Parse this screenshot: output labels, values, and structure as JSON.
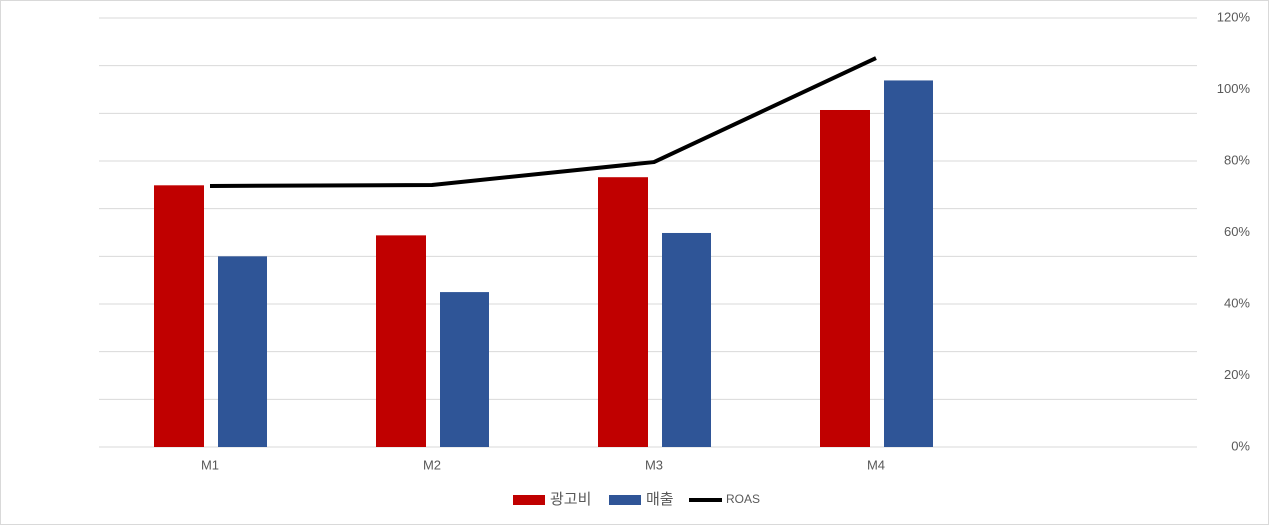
{
  "chart_data": {
    "type": "bar",
    "categories": [
      "M1",
      "M2",
      "M3",
      "M4"
    ],
    "series": [
      {
        "name": "광고비",
        "color": "#c00000",
        "values": [
          5.49,
          4.44,
          5.66,
          7.07
        ]
      },
      {
        "name": "매출",
        "color": "#2f5597",
        "values": [
          4.0,
          3.25,
          4.49,
          7.69
        ]
      },
      {
        "name": "ROAS",
        "color": "#000000",
        "type": "line",
        "axis": "y2",
        "values": [
          73.0,
          73.3,
          79.7,
          108.8
        ]
      }
    ],
    "ylim": [
      0,
      9
    ],
    "yticks": [
      0,
      1,
      2,
      3,
      4,
      5,
      6,
      7,
      8,
      9
    ],
    "grid": true,
    "y2lim": [
      0,
      120
    ],
    "y2ticks": [
      {
        "value": 0,
        "label": "0%"
      },
      {
        "value": 20,
        "label": "20%"
      },
      {
        "value": 40,
        "label": "40%"
      },
      {
        "value": 60,
        "label": "60%"
      },
      {
        "value": 80,
        "label": "80%"
      },
      {
        "value": 100,
        "label": "100%"
      },
      {
        "value": 120,
        "label": "120%"
      }
    ],
    "legend": "bottom"
  }
}
